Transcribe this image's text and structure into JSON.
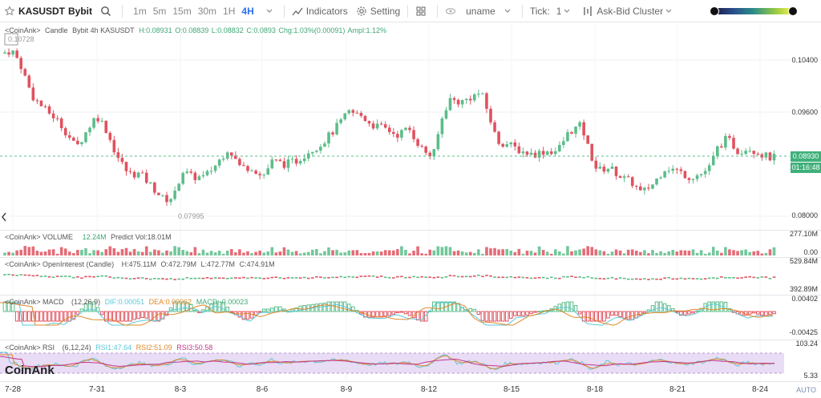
{
  "toolbar": {
    "symbol": "KASUSDT",
    "exchange": "Bybit",
    "timeframes": [
      "1m",
      "5m",
      "15m",
      "30m",
      "1H",
      "4H"
    ],
    "active_timeframe": "4H",
    "indicators_label": "Indicators",
    "setting_label": "Setting",
    "user_label": "uname",
    "tick_label": "Tick:",
    "tick_value": "1",
    "cluster_label": "Ask-Bid Cluster"
  },
  "main": {
    "legend_prefix": "<CoinAnk>",
    "legend_type": "Candle",
    "legend_name": "Bybit 4h KASUSDT",
    "H": "H:0.08931",
    "O": "O:0.08839",
    "L": "L:0.08832",
    "C": "C:0.0893",
    "chg": "Chg:1.03%(0.00091)",
    "ampl": "Ampl:1.12%",
    "high_mark": "0.10728",
    "low_mark": "0.07995",
    "axis": [
      "0.10400",
      "0.09600",
      "0.08000"
    ],
    "last_price": "0.08930",
    "countdown": "01:16:48"
  },
  "volume": {
    "label": "<CoinAnk> VOLUME",
    "value": "12.24M",
    "predict": "Predict Vol:18.01M",
    "axis_top": "277.10M",
    "axis_bottom": "0.00"
  },
  "oi": {
    "label": "<CoinAnk> OpenInterest (Candle)",
    "H": "H:475.11M",
    "O": "O:472.79M",
    "L": "L:472.77M",
    "C": "C:474.91M",
    "axis_top": "529.84M",
    "axis_bottom": "392.89M"
  },
  "macd": {
    "label": "<CoinAnk> MACD",
    "params": "(12,26,9)",
    "dif": "DIF:0.00051",
    "dea": "DEA:0.00062",
    "macd": "MACD:-0.00023",
    "axis_top": "0.00402",
    "axis_bottom": "-0.00425"
  },
  "rsi": {
    "label": "<CoinAnk> RSI",
    "params": "(6,12,24)",
    "rsi1": "RSI1:47.64",
    "rsi2": "RSI2:51.09",
    "rsi3": "RSI3:50.58",
    "axis_top": "103.24",
    "axis_bottom": "5.33"
  },
  "dates": [
    "7-28",
    "7-31",
    "8-3",
    "8-6",
    "8-9",
    "8-12",
    "8-15",
    "8-18",
    "8-21",
    "8-24"
  ],
  "watermark": "CoinAnk",
  "auto_label": "AUTO",
  "colors": {
    "up": "#5bbd8a",
    "down": "#e0525f",
    "accent": "#2a6ee8"
  }
}
